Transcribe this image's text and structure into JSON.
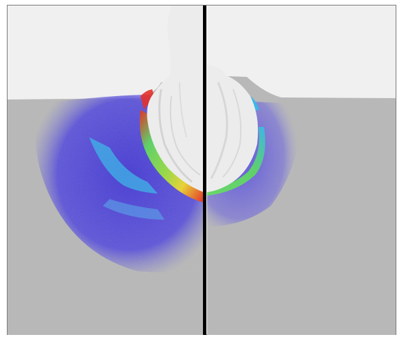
{
  "figure": {
    "panels": [
      {
        "name": "left-panel",
        "side": "left"
      },
      {
        "name": "right-panel",
        "side": "right"
      }
    ],
    "colors": {
      "background_air": "#f0f0f0",
      "material": "#b8b8b8",
      "frame_border": "#7a7a7a",
      "divider": "#000000",
      "debris": "#ececec",
      "cold": "#3b2fd6",
      "cool": "#3fb6e6",
      "mid": "#5fd06a",
      "warm": "#e8d23a",
      "hot": "#e3312a"
    }
  }
}
